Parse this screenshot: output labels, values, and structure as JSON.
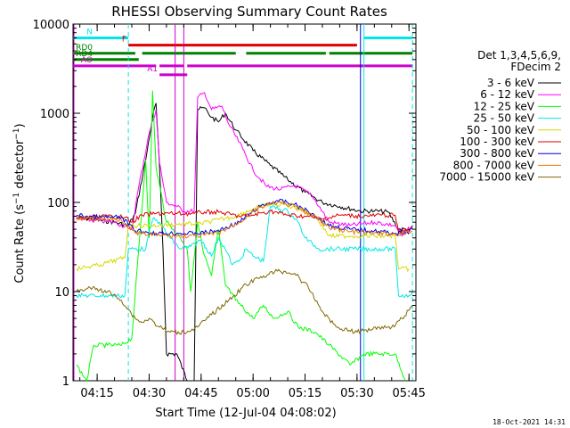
{
  "chart_data": {
    "type": "line",
    "title": "RHESSI Observing Summary Count Rates",
    "xlabel": "Start Time (12-Jul-04 04:08:02)",
    "ylabel": "Count Rate (s⁻¹ detector⁻¹)",
    "ylabel_parts": {
      "main": "Count Rate (s",
      "exp1": "−1",
      "mid": " detector",
      "exp2": "−1",
      "end": ")"
    },
    "y_scale": "log",
    "xlim": [
      "04:08:02",
      "05:47:00"
    ],
    "ylim": [
      1,
      10000
    ],
    "x_ticks": [
      "04:15",
      "04:30",
      "04:45",
      "05:00",
      "05:15",
      "05:30",
      "05:45"
    ],
    "y_ticks": [
      "1",
      "10",
      "100",
      "1000",
      "10000"
    ],
    "footer": "18-Oct-2021 14:31",
    "legend": {
      "placement": "right",
      "header": [
        "Det 1,3,4,5,6,9,",
        "FDecim 2"
      ]
    },
    "series": [
      {
        "name": "3 - 6 keV",
        "color": "#000000",
        "points": [
          [
            "04:09",
            68
          ],
          [
            "04:20",
            60
          ],
          [
            "04:24",
            55
          ],
          [
            "04:26",
            75
          ],
          [
            "04:29",
            300
          ],
          [
            "04:31",
            900
          ],
          [
            "04:32",
            1300
          ],
          [
            "04:33",
            250
          ],
          [
            "04:34",
            30
          ],
          [
            "04:35",
            2
          ],
          [
            "04:38",
            2
          ],
          [
            "04:41",
            1
          ],
          [
            "04:43",
            1
          ],
          [
            "04:44",
            1100
          ],
          [
            "04:46",
            1150
          ],
          [
            "04:48",
            900
          ],
          [
            "04:50",
            800
          ],
          [
            "04:52",
            1000
          ],
          [
            "04:55",
            650
          ],
          [
            "05:00",
            380
          ],
          [
            "05:05",
            260
          ],
          [
            "05:10",
            180
          ],
          [
            "05:15",
            130
          ],
          [
            "05:20",
            100
          ],
          [
            "05:25",
            90
          ],
          [
            "05:31",
            80
          ],
          [
            "05:35",
            80
          ],
          [
            "05:39",
            78
          ],
          [
            "05:42",
            50
          ],
          [
            "05:45",
            50
          ]
        ]
      },
      {
        "name": "6 - 12 keV",
        "color": "#ff00ff",
        "points": [
          [
            "04:09",
            65
          ],
          [
            "04:20",
            60
          ],
          [
            "04:25",
            50
          ],
          [
            "04:27",
            150
          ],
          [
            "04:30",
            600
          ],
          [
            "04:32",
            1100
          ],
          [
            "04:33",
            280
          ],
          [
            "04:35",
            100
          ],
          [
            "04:38",
            90
          ],
          [
            "04:40",
            80
          ],
          [
            "04:43",
            80
          ],
          [
            "04:44",
            1500
          ],
          [
            "04:46",
            1700
          ],
          [
            "04:48",
            1100
          ],
          [
            "04:51",
            1200
          ],
          [
            "04:53",
            750
          ],
          [
            "04:57",
            400
          ],
          [
            "05:00",
            230
          ],
          [
            "05:04",
            150
          ],
          [
            "05:08",
            140
          ],
          [
            "05:12",
            155
          ],
          [
            "05:17",
            120
          ],
          [
            "05:22",
            60
          ],
          [
            "05:28",
            55
          ],
          [
            "05:35",
            60
          ],
          [
            "05:41",
            55
          ],
          [
            "05:43",
            42
          ],
          [
            "05:46",
            55
          ]
        ]
      },
      {
        "name": "12 - 25 keV",
        "color": "#00ff00",
        "points": [
          [
            "04:09",
            1.5
          ],
          [
            "04:12",
            1
          ],
          [
            "04:14",
            2.5
          ],
          [
            "04:18",
            2.5
          ],
          [
            "04:22",
            2.5
          ],
          [
            "04:25",
            3
          ],
          [
            "04:29",
            300
          ],
          [
            "04:30",
            40
          ],
          [
            "04:31",
            1800
          ],
          [
            "04:32",
            250
          ],
          [
            "04:35",
            60
          ],
          [
            "04:37",
            50
          ],
          [
            "04:39",
            40
          ],
          [
            "04:41",
            30
          ],
          [
            "04:42",
            10
          ],
          [
            "04:44",
            60
          ],
          [
            "04:46",
            25
          ],
          [
            "04:48",
            15
          ],
          [
            "04:50",
            50
          ],
          [
            "04:52",
            12
          ],
          [
            "04:55",
            8
          ],
          [
            "05:00",
            5
          ],
          [
            "05:03",
            7
          ],
          [
            "05:06",
            5
          ],
          [
            "05:10",
            6
          ],
          [
            "05:13",
            4
          ],
          [
            "05:18",
            3.5
          ],
          [
            "05:22",
            2.5
          ],
          [
            "05:28",
            1.5
          ],
          [
            "05:32",
            2
          ],
          [
            "05:36",
            2
          ],
          [
            "05:41",
            2
          ],
          [
            "05:44",
            1
          ]
        ]
      },
      {
        "name": "25 - 50 keV",
        "color": "#00e8e8",
        "points": [
          [
            "04:09",
            9
          ],
          [
            "04:16",
            9
          ],
          [
            "04:23",
            9
          ],
          [
            "04:24",
            30
          ],
          [
            "04:29",
            30
          ],
          [
            "04:31",
            65
          ],
          [
            "04:33",
            60
          ],
          [
            "04:36",
            40
          ],
          [
            "04:39",
            30
          ],
          [
            "04:42",
            32
          ],
          [
            "04:45",
            38
          ],
          [
            "04:48",
            25
          ],
          [
            "04:50",
            40
          ],
          [
            "04:52",
            30
          ],
          [
            "04:54",
            20
          ],
          [
            "04:56",
            22
          ],
          [
            "04:58",
            30
          ],
          [
            "05:00",
            25
          ],
          [
            "05:03",
            22
          ],
          [
            "05:05",
            90
          ],
          [
            "05:10",
            80
          ],
          [
            "05:13",
            60
          ],
          [
            "05:15",
            40
          ],
          [
            "05:19",
            30
          ],
          [
            "05:24",
            30
          ],
          [
            "05:31",
            30
          ],
          [
            "05:38",
            30
          ],
          [
            "05:41",
            30
          ],
          [
            "05:42",
            9
          ],
          [
            "05:45",
            9
          ],
          [
            "05:46",
            10
          ]
        ]
      },
      {
        "name": "50 - 100 keV",
        "color": "#d8d800",
        "points": [
          [
            "04:09",
            18
          ],
          [
            "04:16",
            20
          ],
          [
            "04:23",
            24
          ],
          [
            "04:24",
            55
          ],
          [
            "04:33",
            55
          ],
          [
            "04:38",
            57
          ],
          [
            "04:45",
            58
          ],
          [
            "04:50",
            64
          ],
          [
            "04:55",
            70
          ],
          [
            "05:00",
            85
          ],
          [
            "05:05",
            95
          ],
          [
            "05:09",
            95
          ],
          [
            "05:14",
            82
          ],
          [
            "05:18",
            70
          ],
          [
            "05:22",
            42
          ],
          [
            "05:28",
            42
          ],
          [
            "05:35",
            42
          ],
          [
            "05:41",
            42
          ],
          [
            "05:42",
            18
          ],
          [
            "05:45",
            18
          ]
        ]
      },
      {
        "name": "100 - 300 keV",
        "color": "#e00000",
        "points": [
          [
            "04:09",
            65
          ],
          [
            "04:18",
            70
          ],
          [
            "04:23",
            68
          ],
          [
            "04:25",
            60
          ],
          [
            "04:28",
            72
          ],
          [
            "04:32",
            75
          ],
          [
            "04:38",
            75
          ],
          [
            "04:43",
            75
          ],
          [
            "04:46",
            78
          ],
          [
            "04:50",
            78
          ],
          [
            "04:56",
            70
          ],
          [
            "05:00",
            72
          ],
          [
            "05:05",
            80
          ],
          [
            "05:10",
            72
          ],
          [
            "05:15",
            70
          ],
          [
            "05:20",
            65
          ],
          [
            "05:25",
            72
          ],
          [
            "05:32",
            70
          ],
          [
            "05:37",
            72
          ],
          [
            "05:41",
            72
          ],
          [
            "05:42",
            45
          ],
          [
            "05:46",
            52
          ]
        ]
      },
      {
        "name": "300 - 800 keV",
        "color": "#0000dd",
        "points": [
          [
            "04:09",
            72
          ],
          [
            "04:16",
            68
          ],
          [
            "04:22",
            68
          ],
          [
            "04:26",
            48
          ],
          [
            "04:32",
            45
          ],
          [
            "04:38",
            45
          ],
          [
            "04:44",
            45
          ],
          [
            "04:50",
            48
          ],
          [
            "04:56",
            60
          ],
          [
            "05:02",
            90
          ],
          [
            "05:07",
            105
          ],
          [
            "05:12",
            95
          ],
          [
            "05:17",
            75
          ],
          [
            "05:22",
            55
          ],
          [
            "05:28",
            50
          ],
          [
            "05:35",
            48
          ],
          [
            "05:41",
            45
          ],
          [
            "05:44",
            45
          ],
          [
            "05:46",
            50
          ]
        ]
      },
      {
        "name": "800 - 7000 keV",
        "color": "#e87800",
        "points": [
          [
            "04:09",
            66
          ],
          [
            "04:16",
            65
          ],
          [
            "04:22",
            64
          ],
          [
            "04:26",
            45
          ],
          [
            "04:32",
            43
          ],
          [
            "04:38",
            42
          ],
          [
            "04:44",
            42
          ],
          [
            "04:50",
            45
          ],
          [
            "04:56",
            60
          ],
          [
            "05:02",
            88
          ],
          [
            "05:07",
            100
          ],
          [
            "05:12",
            90
          ],
          [
            "05:17",
            72
          ],
          [
            "05:22",
            52
          ],
          [
            "05:28",
            47
          ],
          [
            "05:35",
            45
          ],
          [
            "05:41",
            44
          ],
          [
            "05:44",
            44
          ],
          [
            "05:46",
            48
          ]
        ]
      },
      {
        "name": "7000 - 15000 keV",
        "color": "#806800",
        "points": [
          [
            "04:09",
            10
          ],
          [
            "04:13",
            11
          ],
          [
            "04:18",
            10
          ],
          [
            "04:22",
            8
          ],
          [
            "04:26",
            5
          ],
          [
            "04:28",
            4.5
          ],
          [
            "04:30",
            5
          ],
          [
            "04:33",
            4
          ],
          [
            "04:36",
            3.5
          ],
          [
            "04:40",
            3.5
          ],
          [
            "04:44",
            4
          ],
          [
            "04:48",
            5.5
          ],
          [
            "04:53",
            8
          ],
          [
            "04:58",
            12
          ],
          [
            "05:03",
            15
          ],
          [
            "05:07",
            17
          ],
          [
            "05:12",
            16
          ],
          [
            "05:16",
            11
          ],
          [
            "05:20",
            6
          ],
          [
            "05:24",
            4
          ],
          [
            "05:30",
            3.5
          ],
          [
            "05:36",
            4
          ],
          [
            "05:40",
            4
          ],
          [
            "05:43",
            5
          ],
          [
            "05:46",
            7
          ]
        ]
      }
    ],
    "flag_bars": [
      {
        "label": "N",
        "color": "#00e8e8",
        "y": 7000,
        "segments": [
          [
            "04:08:02",
            "04:24"
          ],
          [
            "05:32",
            "05:46"
          ]
        ]
      },
      {
        "label": "F",
        "color": "#e00000",
        "y": 5800,
        "segments": [
          [
            "04:24",
            "05:30"
          ]
        ]
      },
      {
        "label": "RD0",
        "color": "#008000",
        "y": 4700,
        "segments": [
          [
            "04:08:02",
            "04:26"
          ],
          [
            "04:28",
            "04:55"
          ],
          [
            "04:58",
            "05:21"
          ],
          [
            "05:22",
            "05:46"
          ]
        ]
      },
      {
        "label": "RD4",
        "color": "#008000",
        "y": 4000,
        "segments": [
          [
            "04:08:02",
            "04:27"
          ]
        ]
      },
      {
        "label": "AO",
        "color": "#cc00cc",
        "y": 3400,
        "segments": [
          [
            "04:08:02",
            "04:32"
          ],
          [
            "04:33",
            "04:40"
          ],
          [
            "04:41",
            "05:46"
          ]
        ]
      },
      {
        "label": "A1",
        "color": "#cc00cc",
        "y": 2700,
        "segments": [
          [
            "04:33",
            "04:41"
          ]
        ]
      }
    ],
    "vertical_markers": [
      {
        "color": "#00e8e8",
        "style": "dashed",
        "x": "04:24"
      },
      {
        "color": "#00e8e8",
        "style": "dashed",
        "x": "05:46"
      },
      {
        "color": "#00e8e8",
        "style": "solid",
        "x": "05:32"
      },
      {
        "color": "#cc00cc",
        "style": "solid",
        "x": "04:08:05"
      },
      {
        "color": "#cc00cc",
        "style": "solid",
        "x": "04:37:30"
      },
      {
        "color": "#cc00cc",
        "style": "solid",
        "x": "04:40:00"
      },
      {
        "color": "#0000dd",
        "style": "solid",
        "x": "05:31"
      }
    ]
  }
}
